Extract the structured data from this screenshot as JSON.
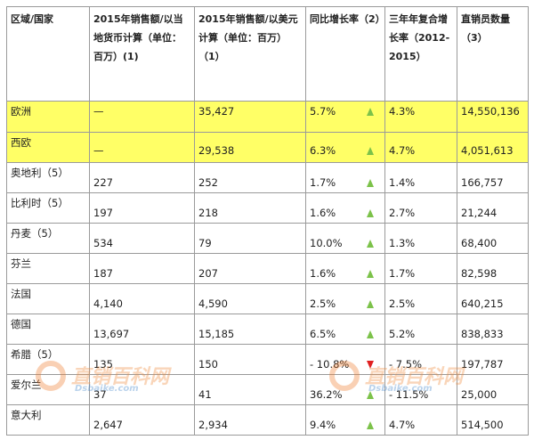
{
  "headers": [
    "区域/国家",
    "2015年销售额/以当地货币计算（单位：百万）(1)",
    "2015年销售额/以美元计算（单位：百万）（1）",
    "同比增长率（2）",
    "三年年复合增长率（2012-2015）",
    "直销员数量（3）"
  ],
  "rows": [
    {
      "region": "欧洲",
      "local": "—",
      "usd": "35,427",
      "growth": "5.7%",
      "trend": "up",
      "cagr": "4.3%",
      "reps": "14,550,136",
      "highlight": true
    },
    {
      "region": "西欧",
      "local": "—",
      "usd": "29,538",
      "growth": "6.3%",
      "trend": "up",
      "cagr": "4.7%",
      "reps": "4,051,613",
      "highlight": true
    },
    {
      "region": "奥地利（5）",
      "local": "227",
      "usd": "252",
      "growth": "1.7%",
      "trend": "up",
      "cagr": "1.4%",
      "reps": "166,757"
    },
    {
      "region": "比利时（5）",
      "local": "197",
      "usd": "218",
      "growth": "1.6%",
      "trend": "up",
      "cagr": "2.7%",
      "reps": "21,244"
    },
    {
      "region": "丹麦（5）",
      "local": "534",
      "usd": "79",
      "growth": "10.0%",
      "trend": "up",
      "cagr": "1.3%",
      "reps": "68,400"
    },
    {
      "region": "芬兰",
      "local": "187",
      "usd": "207",
      "growth": "1.6%",
      "trend": "up",
      "cagr": "1.7%",
      "reps": "82,598"
    },
    {
      "region": "法国",
      "local": "4,140",
      "usd": "4,590",
      "growth": "2.5%",
      "trend": "up",
      "cagr": "2.5%",
      "reps": "640,215"
    },
    {
      "region": "德国",
      "local": "13,697",
      "usd": "15,185",
      "growth": "6.5%",
      "trend": "up",
      "cagr": "5.2%",
      "reps": "838,833"
    },
    {
      "region": "希腊（5）",
      "local": "135",
      "usd": "150",
      "growth": "- 10.8%",
      "trend": "down",
      "cagr": "- 7.5%",
      "reps": "197,787"
    },
    {
      "region": "爱尔兰",
      "local": "37",
      "usd": "41",
      "growth": "36.2%",
      "trend": "up",
      "cagr": "- 11.5%",
      "reps": "25,000"
    },
    {
      "region": "意大利",
      "local": "2,647",
      "usd": "2,934",
      "growth": "9.4%",
      "trend": "up",
      "cagr": "4.7%",
      "reps": "514,500"
    }
  ],
  "watermark": {
    "title": "直销百科网",
    "site": "Dsbaike.com"
  },
  "colors": {
    "highlight": "#ffff66",
    "up": "#7cc24a",
    "down": "#e02020"
  }
}
